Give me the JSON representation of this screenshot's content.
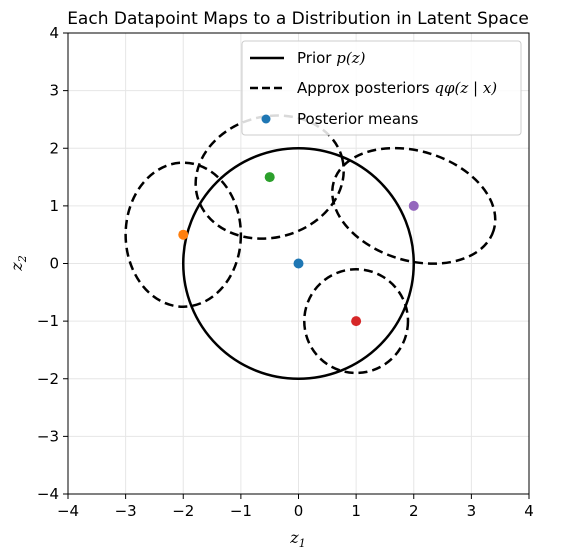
{
  "chart_data": {
    "type": "scatter",
    "title": "Each Datapoint Maps to a Distribution in Latent Space",
    "xlabel": "z",
    "xlabel_sub": "1",
    "ylabel": "z",
    "ylabel_sub": "2",
    "xlim": [
      -4,
      4
    ],
    "ylim": [
      -4,
      4
    ],
    "xticks": [
      -4,
      -3,
      -2,
      -1,
      0,
      1,
      2,
      3,
      4
    ],
    "yticks": [
      -4,
      -3,
      -2,
      -1,
      0,
      1,
      2,
      3,
      4
    ],
    "xtick_labels": [
      "−4",
      "−3",
      "−2",
      "−1",
      "0",
      "1",
      "2",
      "3",
      "4"
    ],
    "ytick_labels": [
      "−4",
      "−3",
      "−2",
      "−1",
      "0",
      "1",
      "2",
      "3",
      "4"
    ],
    "grid": true,
    "legend_position": "top-right",
    "legend": [
      {
        "label_main": "Prior ",
        "label_math": "p(z)",
        "style": "solid-line"
      },
      {
        "label_main": "Approx posteriors ",
        "label_math": "qφ(z | x)",
        "style": "dashed-line"
      },
      {
        "label_main": "Posterior means",
        "label_math": "",
        "style": "marker"
      }
    ],
    "prior": {
      "center": [
        0,
        0
      ],
      "radius": 2
    },
    "posteriors": [
      {
        "center": [
          -2.0,
          0.5
        ],
        "rx": 1.0,
        "ry": 1.25,
        "angle": 0,
        "color": "#ff7f0e"
      },
      {
        "center": [
          -0.5,
          1.5
        ],
        "rx": 1.3,
        "ry": 1.05,
        "angle": 15,
        "color": "#2ca02c"
      },
      {
        "center": [
          2.0,
          1.0
        ],
        "rx": 1.45,
        "ry": 0.95,
        "angle": -17,
        "color": "#9467bd"
      },
      {
        "center": [
          1.0,
          -1.0
        ],
        "rx": 0.9,
        "ry": 0.9,
        "angle": 0,
        "color": "#d62728"
      }
    ],
    "means": [
      {
        "x": 0.0,
        "y": 0.0,
        "color": "#1f77b4"
      },
      {
        "x": -2.0,
        "y": 0.5,
        "color": "#ff7f0e"
      },
      {
        "x": -0.5,
        "y": 1.5,
        "color": "#2ca02c"
      },
      {
        "x": 1.0,
        "y": -1.0,
        "color": "#d62728"
      },
      {
        "x": 2.0,
        "y": 1.0,
        "color": "#9467bd"
      }
    ],
    "legend_marker_color": "#1f77b4"
  }
}
